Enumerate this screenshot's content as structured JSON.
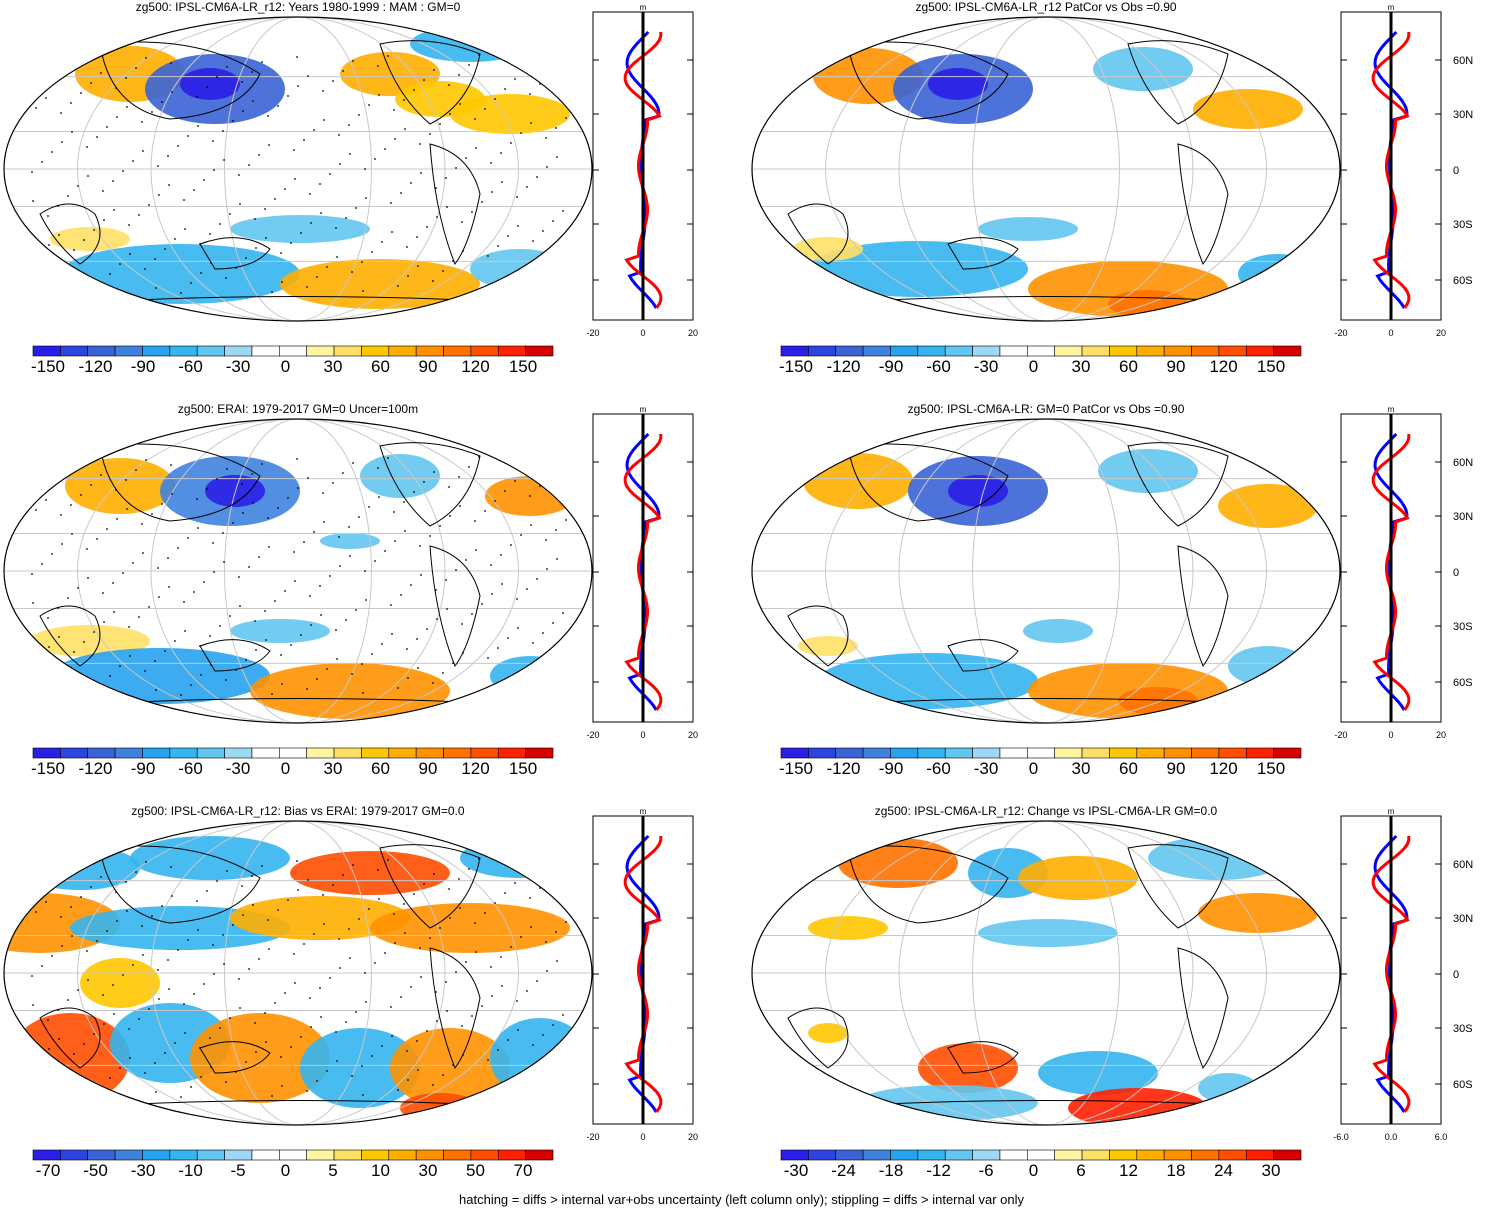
{
  "colors": {
    "diverging": [
      "#2a1fe6",
      "#2c45e0",
      "#3a64d6",
      "#3f82de",
      "#27a2ee",
      "#34b5f0",
      "#63c6f0",
      "#9dd9f5",
      "#ffffff",
      "#ffffff",
      "#fff5a0",
      "#ffe066",
      "#ffc800",
      "#ffae00",
      "#ff9100",
      "#ff7200",
      "#ff4e00",
      "#ff2000",
      "#d70000"
    ],
    "obs_line": "#ff0000",
    "model_line": "#0000ff",
    "mean_line": "#000000",
    "land_outline": "#000000",
    "grid": "#c8c8c8"
  },
  "panels": [
    {
      "id": "p1",
      "title": "zg500: IPSL-CM6A-LR_r12: Years 1980-1999 : MAM : GM=0",
      "colorbar_labels": [
        "-150",
        "-120",
        "-90",
        "-60",
        "-30",
        "0",
        "30",
        "60",
        "90",
        "120",
        "150"
      ],
      "profile": {
        "unit": "m",
        "x_ticks": [
          "-20",
          "0",
          "20"
        ],
        "lat_labels": [],
        "xlim": [
          -20,
          20
        ]
      },
      "stippled": true
    },
    {
      "id": "p2",
      "title": "zg500: IPSL-CM6A-LR_r12 PatCor vs Obs =0.90",
      "colorbar_labels": [
        "-150",
        "-120",
        "-90",
        "-60",
        "-30",
        "0",
        "30",
        "60",
        "90",
        "120",
        "150"
      ],
      "profile": {
        "unit": "m",
        "x_ticks": [
          "-20",
          "0",
          "20"
        ],
        "lat_labels": [
          "60N",
          "30N",
          "0",
          "30S",
          "60S"
        ],
        "xlim": [
          -20,
          20
        ]
      },
      "stippled": false
    },
    {
      "id": "p3",
      "title": "zg500: ERAI: 1979-2017 GM=0 Uncer=100m",
      "colorbar_labels": [
        "-150",
        "-120",
        "-90",
        "-60",
        "-30",
        "0",
        "30",
        "60",
        "90",
        "120",
        "150"
      ],
      "profile": {
        "unit": "m",
        "x_ticks": [
          "-20",
          "0",
          "20"
        ],
        "lat_labels": [],
        "xlim": [
          -20,
          20
        ]
      },
      "stippled": true
    },
    {
      "id": "p4",
      "title": "zg500: IPSL-CM6A-LR: GM=0 PatCor vs Obs =0.90",
      "colorbar_labels": [
        "-150",
        "-120",
        "-90",
        "-60",
        "-30",
        "0",
        "30",
        "60",
        "90",
        "120",
        "150"
      ],
      "profile": {
        "unit": "m",
        "x_ticks": [
          "-20",
          "0",
          "20"
        ],
        "lat_labels": [
          "60N",
          "30N",
          "0",
          "30S",
          "60S"
        ],
        "xlim": [
          -20,
          20
        ]
      },
      "stippled": false
    },
    {
      "id": "p5",
      "title": "zg500: IPSL-CM6A-LR_r12: Bias vs ERAI: 1979-2017 GM=0.0",
      "colorbar_labels": [
        "-70",
        "-50",
        "-30",
        "-10",
        "-5",
        "0",
        "5",
        "10",
        "30",
        "50",
        "70"
      ],
      "profile": {
        "unit": "m",
        "x_ticks": [
          "-20",
          "0",
          "20"
        ],
        "lat_labels": [],
        "xlim": [
          -20,
          20
        ]
      },
      "stippled": true
    },
    {
      "id": "p6",
      "title": "zg500: IPSL-CM6A-LR_r12: Change vs IPSL-CM6A-LR GM=0.0",
      "colorbar_labels": [
        "-30",
        "-24",
        "-18",
        "-12",
        "-6",
        "0",
        "6",
        "12",
        "18",
        "24",
        "30"
      ],
      "profile": {
        "unit": "m",
        "x_ticks": [
          "-6.0",
          "0.0",
          "6.0"
        ],
        "lat_labels": [
          "60N",
          "30N",
          "0",
          "30S",
          "60S"
        ],
        "xlim": [
          -6,
          6
        ]
      },
      "stippled": false
    }
  ],
  "footer": "hatching = diffs > internal var+obs uncertainty (left column only); stippling = diffs > internal var only"
}
